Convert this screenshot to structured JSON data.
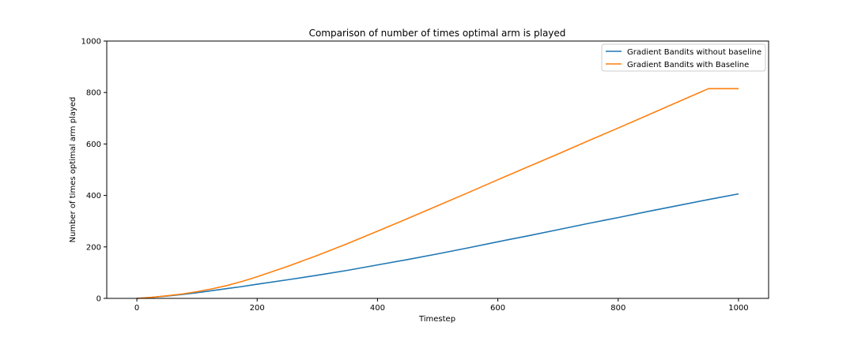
{
  "chart_data": {
    "type": "line",
    "title": "Comparison of number of times optimal arm is played",
    "xlabel": "Timestep",
    "ylabel": "Number of times optimal arm played",
    "xlim": [
      -50,
      1050
    ],
    "ylim": [
      0,
      1000
    ],
    "xticks": [
      0,
      200,
      400,
      600,
      800,
      1000
    ],
    "yticks": [
      0,
      200,
      400,
      600,
      800,
      1000
    ],
    "grid": false,
    "legend_position": "top-right",
    "x": [
      0,
      25,
      50,
      75,
      100,
      125,
      150,
      175,
      200,
      250,
      300,
      350,
      400,
      450,
      500,
      550,
      600,
      650,
      700,
      750,
      800,
      850,
      900,
      950,
      1000
    ],
    "series": [
      {
        "name": "Gradient Bandits without baseline",
        "color": "#1f77b4",
        "values": [
          0,
          4,
          9,
          15,
          22,
          30,
          38,
          46,
          55,
          72,
          90,
          109,
          130,
          151,
          173,
          196,
          220,
          243,
          267,
          291,
          314,
          338,
          361,
          384,
          406
        ]
      },
      {
        "name": "Gradient Bandits with Baseline",
        "color": "#ff7f0e",
        "values": [
          0,
          4,
          10,
          17,
          26,
          37,
          50,
          66,
          84,
          124,
          167,
          213,
          261,
          310,
          360,
          410,
          461,
          511,
          561,
          612,
          662,
          713,
          764,
          815,
          815
        ]
      }
    ]
  }
}
